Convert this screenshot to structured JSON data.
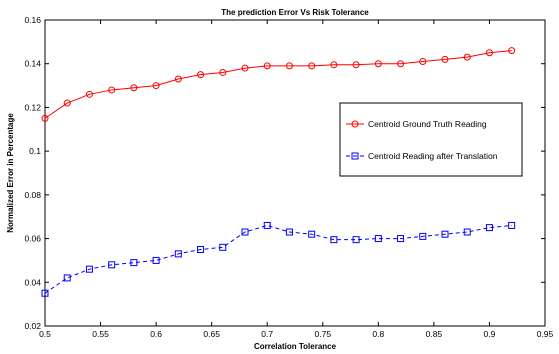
{
  "chart_data": {
    "type": "line",
    "title": "The prediction Error Vs Risk Tolerance",
    "xlabel": "Correlation Tolerance",
    "ylabel": "Normalized Error in Percentage",
    "xlim": [
      0.5,
      0.95
    ],
    "ylim": [
      0.02,
      0.16
    ],
    "xticks": [
      0.5,
      0.55,
      0.6,
      0.65,
      0.7,
      0.75,
      0.8,
      0.85,
      0.9,
      0.95
    ],
    "xtick_labels": [
      "0.5",
      "0.55",
      "0.6",
      "0.65",
      "0.7",
      "0.75",
      "0.8",
      "0.85",
      "0.9",
      "0.95"
    ],
    "yticks": [
      0.02,
      0.04,
      0.06,
      0.08,
      0.1,
      0.12,
      0.14,
      0.16
    ],
    "ytick_labels": [
      "0.02",
      "0.04",
      "0.06",
      "0.08",
      "0.1",
      "0.12",
      "0.14",
      "0.16"
    ],
    "grid": false,
    "legend_position": "right",
    "x": [
      0.5,
      0.52,
      0.54,
      0.56,
      0.58,
      0.6,
      0.62,
      0.64,
      0.66,
      0.68,
      0.7,
      0.72,
      0.74,
      0.76,
      0.78,
      0.8,
      0.82,
      0.84,
      0.86,
      0.88,
      0.9,
      0.92
    ],
    "series": [
      {
        "name": "Centroid Ground Truth Reading",
        "color": "#ff0000",
        "line_style": "solid",
        "marker": "circle",
        "values": [
          0.115,
          0.122,
          0.126,
          0.128,
          0.129,
          0.13,
          0.133,
          0.135,
          0.136,
          0.138,
          0.139,
          0.139,
          0.139,
          0.1395,
          0.1395,
          0.14,
          0.14,
          0.141,
          0.142,
          0.143,
          0.145,
          0.146
        ]
      },
      {
        "name": "Centroid Reading after Translation",
        "color": "#0000ff",
        "line_style": "dashed",
        "marker": "square",
        "values": [
          0.035,
          0.042,
          0.046,
          0.048,
          0.049,
          0.05,
          0.053,
          0.055,
          0.056,
          0.063,
          0.066,
          0.063,
          0.062,
          0.0595,
          0.0595,
          0.06,
          0.06,
          0.061,
          0.062,
          0.063,
          0.065,
          0.066
        ]
      }
    ]
  }
}
